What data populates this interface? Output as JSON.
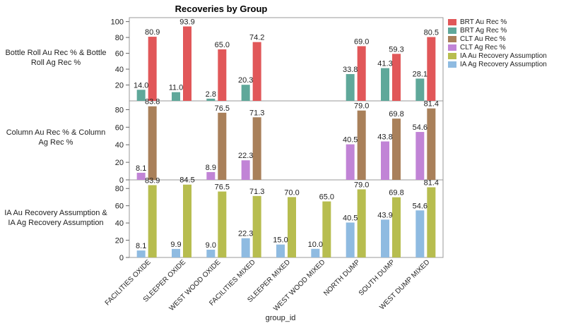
{
  "chart_data": {
    "type": "bar",
    "title": "Recoveries by Group",
    "xlabel": "group_id",
    "categories": [
      "FACILITIES OXIDE",
      "SLEEPER OXIDE",
      "WEST WOOD OXIDE",
      "FACILITIES MIXED",
      "SLEEPER MIXED",
      "WEST WOOD MIXED",
      "NORTH DUMP",
      "SOUTH DUMP",
      "WEST DUMP MIXED"
    ],
    "legend": [
      {
        "label": "BRT Au Rec %",
        "color": "#e15759"
      },
      {
        "label": "BRT Ag Rec %",
        "color": "#5fa89a"
      },
      {
        "label": "CLT Au Rec %",
        "color": "#a9805a"
      },
      {
        "label": "CLT Ag Rec %",
        "color": "#c184d6"
      },
      {
        "label": "IA Au Recovery Assumption",
        "color": "#b7bd4f"
      },
      {
        "label": "IA Ag Recovery Assumption",
        "color": "#8fbbe1"
      }
    ],
    "legend_position": "right",
    "panels": [
      {
        "ylabel": "Bottle Roll Au Rec % & Bottle Roll Ag Rec %",
        "ylim": [
          0,
          105
        ],
        "yticks": [
          20,
          40,
          60,
          80,
          100
        ],
        "series": [
          {
            "name": "BRT Au Rec %",
            "color": "#e15759",
            "values": [
              80.9,
              93.9,
              65.0,
              74.2,
              null,
              null,
              69.0,
              59.3,
              80.5
            ],
            "labels": [
              "80.9",
              "93.9",
              "65.0",
              "74.2",
              null,
              null,
              "69.0",
              "59.3",
              "80.5"
            ]
          },
          {
            "name": "BRT Ag Rec %",
            "color": "#5fa89a",
            "values": [
              14.0,
              11.0,
              2.8,
              20.3,
              null,
              null,
              33.8,
              41.3,
              28.1
            ],
            "labels": [
              "14.0",
              "11.0",
              "2.8",
              "20.3",
              null,
              null,
              "33.8",
              "41.3",
              "28.1"
            ]
          }
        ]
      },
      {
        "ylabel": "Column Au Rec % & Column Ag Rec %",
        "ylim": [
          0,
          90
        ],
        "yticks": [
          0,
          20,
          40,
          60,
          80
        ],
        "series": [
          {
            "name": "CLT Au Rec %",
            "color": "#a9805a",
            "values": [
              83.8,
              null,
              76.5,
              71.3,
              null,
              null,
              79.0,
              69.8,
              81.4
            ],
            "labels": [
              "83.8",
              null,
              "76.5",
              "71.3",
              null,
              null,
              "79.0",
              "69.8",
              "81.4"
            ]
          },
          {
            "name": "CLT Ag Rec %",
            "color": "#c184d6",
            "values": [
              8.1,
              null,
              8.9,
              22.3,
              null,
              null,
              40.5,
              43.8,
              54.6
            ],
            "labels": [
              "8.1",
              null,
              "8.9",
              "22.3",
              null,
              null,
              "40.5",
              "43.8",
              "54.6"
            ]
          }
        ]
      },
      {
        "ylabel": "IA Au Recovery Assumption & IA Ag Recovery Assumption",
        "ylim": [
          0,
          90
        ],
        "yticks": [
          0,
          20,
          40,
          60,
          80
        ],
        "series": [
          {
            "name": "IA Au Recovery Assumption",
            "color": "#b7bd4f",
            "values": [
              83.9,
              84.5,
              76.5,
              71.3,
              70.0,
              65.0,
              79.0,
              69.8,
              81.4
            ],
            "labels": [
              "83.9",
              "84.5",
              "76.5",
              "71.3",
              "70.0",
              "65.0",
              "79.0",
              "69.8",
              "81.4"
            ]
          },
          {
            "name": "IA Ag Recovery Assumption",
            "color": "#8fbbe1",
            "values": [
              8.1,
              9.9,
              9.0,
              22.3,
              15.0,
              10.0,
              40.5,
              43.9,
              54.6
            ],
            "labels": [
              "8.1",
              "9.9",
              "9.0",
              "22.3",
              "15.0",
              "10.0",
              "40.5",
              "43.9",
              "54.6"
            ]
          }
        ]
      }
    ]
  }
}
